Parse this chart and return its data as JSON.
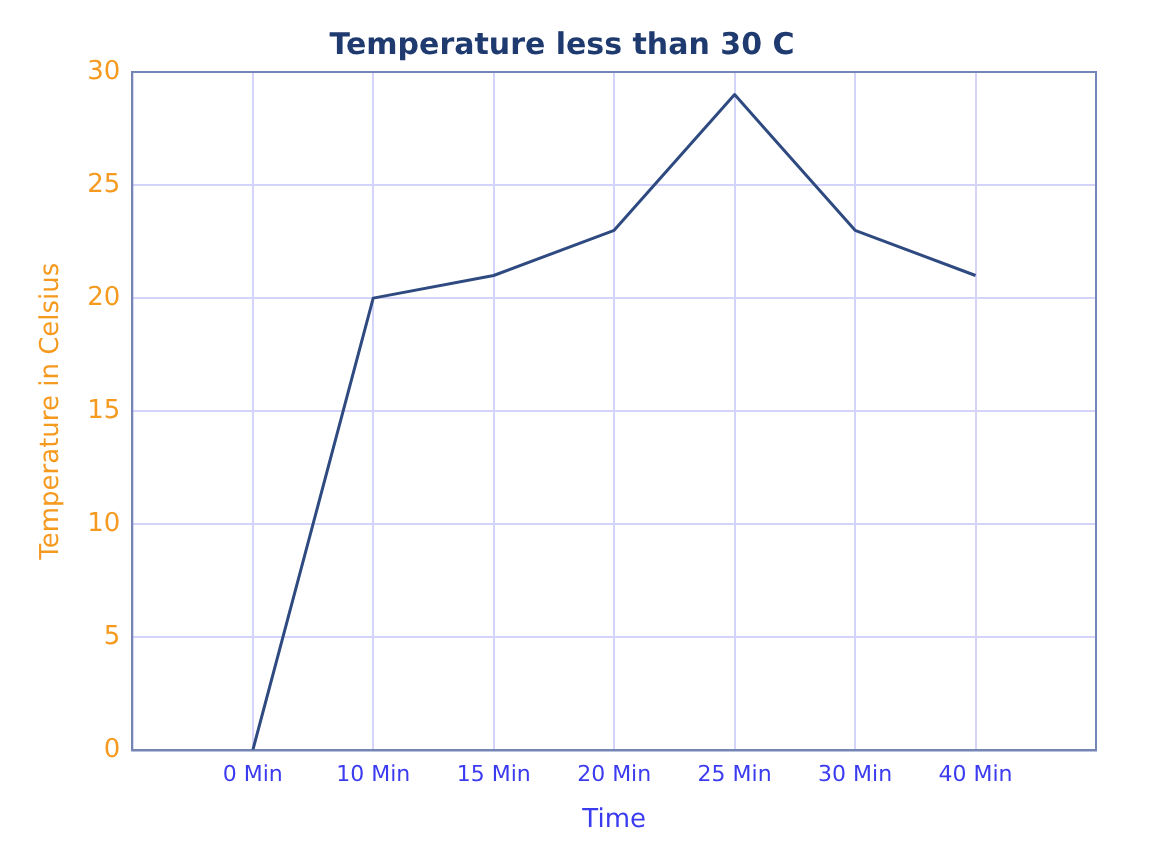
{
  "chart_data": {
    "type": "line",
    "title": "Temperature less than 30 C",
    "xlabel": "Time",
    "ylabel": "Temperature in Celsius",
    "categories": [
      null,
      "0 Min",
      "10 Min",
      "15 Min",
      "20 Min",
      "25 Min",
      "30 Min",
      "40 Min",
      null
    ],
    "series": [
      {
        "color": "#2e4a80",
        "values": [
          null,
          0,
          20,
          21,
          23,
          29,
          23,
          21,
          null
        ]
      }
    ],
    "ylim": [
      0,
      30
    ],
    "yticks": [
      0,
      5,
      10,
      15,
      20,
      25,
      30
    ],
    "grid": true,
    "legend": false,
    "marker": "none",
    "line_style": "solid"
  }
}
